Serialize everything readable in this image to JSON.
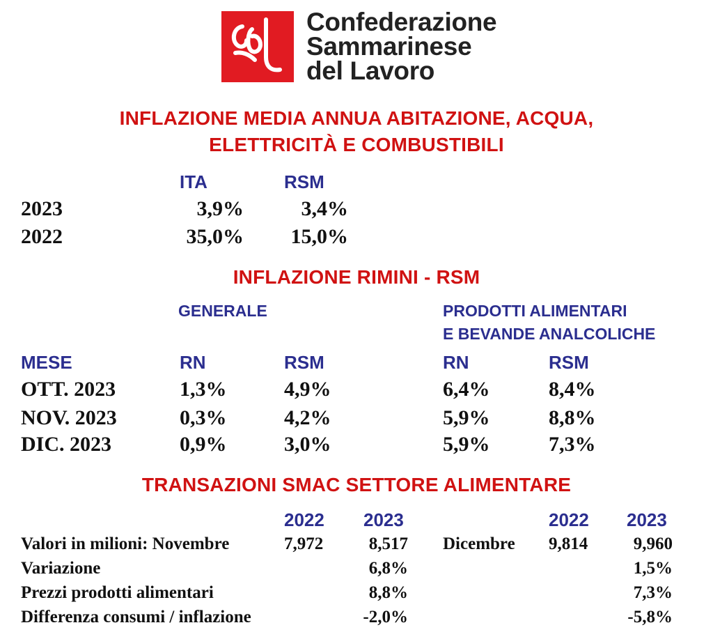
{
  "logo": {
    "line1": "Confederazione",
    "line2": "Sammarinese",
    "line3": "del Lavoro",
    "brand_color": "#e11b22"
  },
  "section1": {
    "title_line1": "INFLAZIONE MEDIA ANNUA ABITAZIONE, ACQUA,",
    "title_line2": "ELETTRICITÀ E COMBUSTIBILI",
    "col_ita": "ITA",
    "col_rsm": "RSM",
    "rows": [
      {
        "year": "2023",
        "ita": "3,9%",
        "rsm": "3,4%"
      },
      {
        "year": "2022",
        "ita": "35,0%",
        "rsm": "15,0%"
      }
    ]
  },
  "section2": {
    "title": "INFLAZIONE RIMINI - RSM",
    "group_general": "GENERALE",
    "group_food_line1": "PRODOTTI ALIMENTARI",
    "group_food_line2": "E BEVANDE ANALCOLICHE",
    "col_mese": "MESE",
    "col_rn": "RN",
    "col_rsm": "RSM",
    "col_rn2": "RN",
    "col_rsm2": "RSM",
    "rows": [
      {
        "mese": "OTT. 2023",
        "gen_rn": "1,3%",
        "gen_rsm": "4,9%",
        "food_rn": "6,4%",
        "food_rsm": "8,4%"
      },
      {
        "mese": "NOV. 2023",
        "gen_rn": "0,3%",
        "gen_rsm": "4,2%",
        "food_rn": "5,9%",
        "food_rsm": "8,8%"
      },
      {
        "mese": "DIC. 2023",
        "gen_rn": "0,9%",
        "gen_rsm": "3,0%",
        "food_rn": "5,9%",
        "food_rsm": "7,3%"
      }
    ]
  },
  "section3": {
    "title": "TRANSAZIONI SMAC SETTORE ALIMENTARE",
    "hdr_2022_a": "2022",
    "hdr_2023_a": "2023",
    "hdr_2022_b": "2022",
    "hdr_2023_b": "2023",
    "row1": {
      "label": "Valori in milioni: Novembre",
      "nov_2022": "7,972",
      "nov_2023": "8,517",
      "dic_label": "Dicembre",
      "dic_2022": "9,814",
      "dic_2023": "9,960"
    },
    "row2": {
      "label": "Variazione",
      "nov": "6,8%",
      "dic": "1,5%"
    },
    "row3": {
      "label": "Prezzi prodotti alimentari",
      "nov": "8,8%",
      "dic": "7,3%"
    },
    "row4": {
      "label": "Differenza consumi / inflazione",
      "nov": "-2,0%",
      "dic": "-5,8%"
    }
  }
}
